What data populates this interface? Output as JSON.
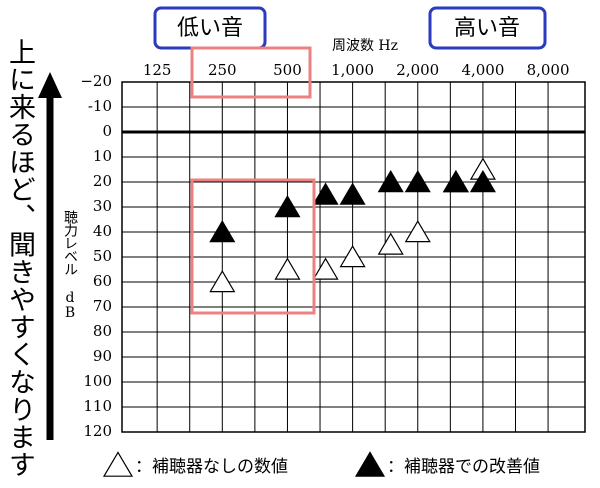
{
  "chart_data": {
    "type": "scatter",
    "side_note": "上に来るほど、聞きやすくなります",
    "annotations": [
      "低い音",
      "高い音"
    ],
    "x_label": "周波数 Hz",
    "y_label": "聴力レベル dB",
    "log_x": true,
    "reverse_y": true,
    "grid": true,
    "xlim": [
      86,
      11850
    ],
    "xticks": [
      125,
      250,
      500,
      {
        "value": 1000,
        "label": "1,000"
      },
      {
        "value": 2000,
        "label": "2,000"
      },
      {
        "value": 4000,
        "label": "4,000"
      },
      {
        "value": 8000,
        "label": "8,000"
      }
    ],
    "ylim": [
      -20,
      120
    ],
    "yticks": [
      {
        "value": -20,
        "label": "−20"
      },
      -10,
      0,
      10,
      20,
      30,
      40,
      50,
      60,
      70,
      80,
      90,
      100,
      110,
      120
    ],
    "series": [
      {
        "name": "：補聴器なしの数値",
        "color": "#ffffff",
        "x": [
          250,
          500,
          750,
          1000,
          1500,
          2000,
          3000,
          4000
        ],
        "values": [
          60,
          55,
          55,
          50,
          45,
          40,
          20,
          15
        ]
      },
      {
        "name": "：補聴器での改善値",
        "color": "#000000",
        "x": [
          250,
          500,
          750,
          1000,
          1500,
          2000,
          3000,
          4000
        ],
        "values": [
          40,
          30,
          25,
          25,
          20,
          20,
          20,
          20
        ]
      }
    ]
  }
}
